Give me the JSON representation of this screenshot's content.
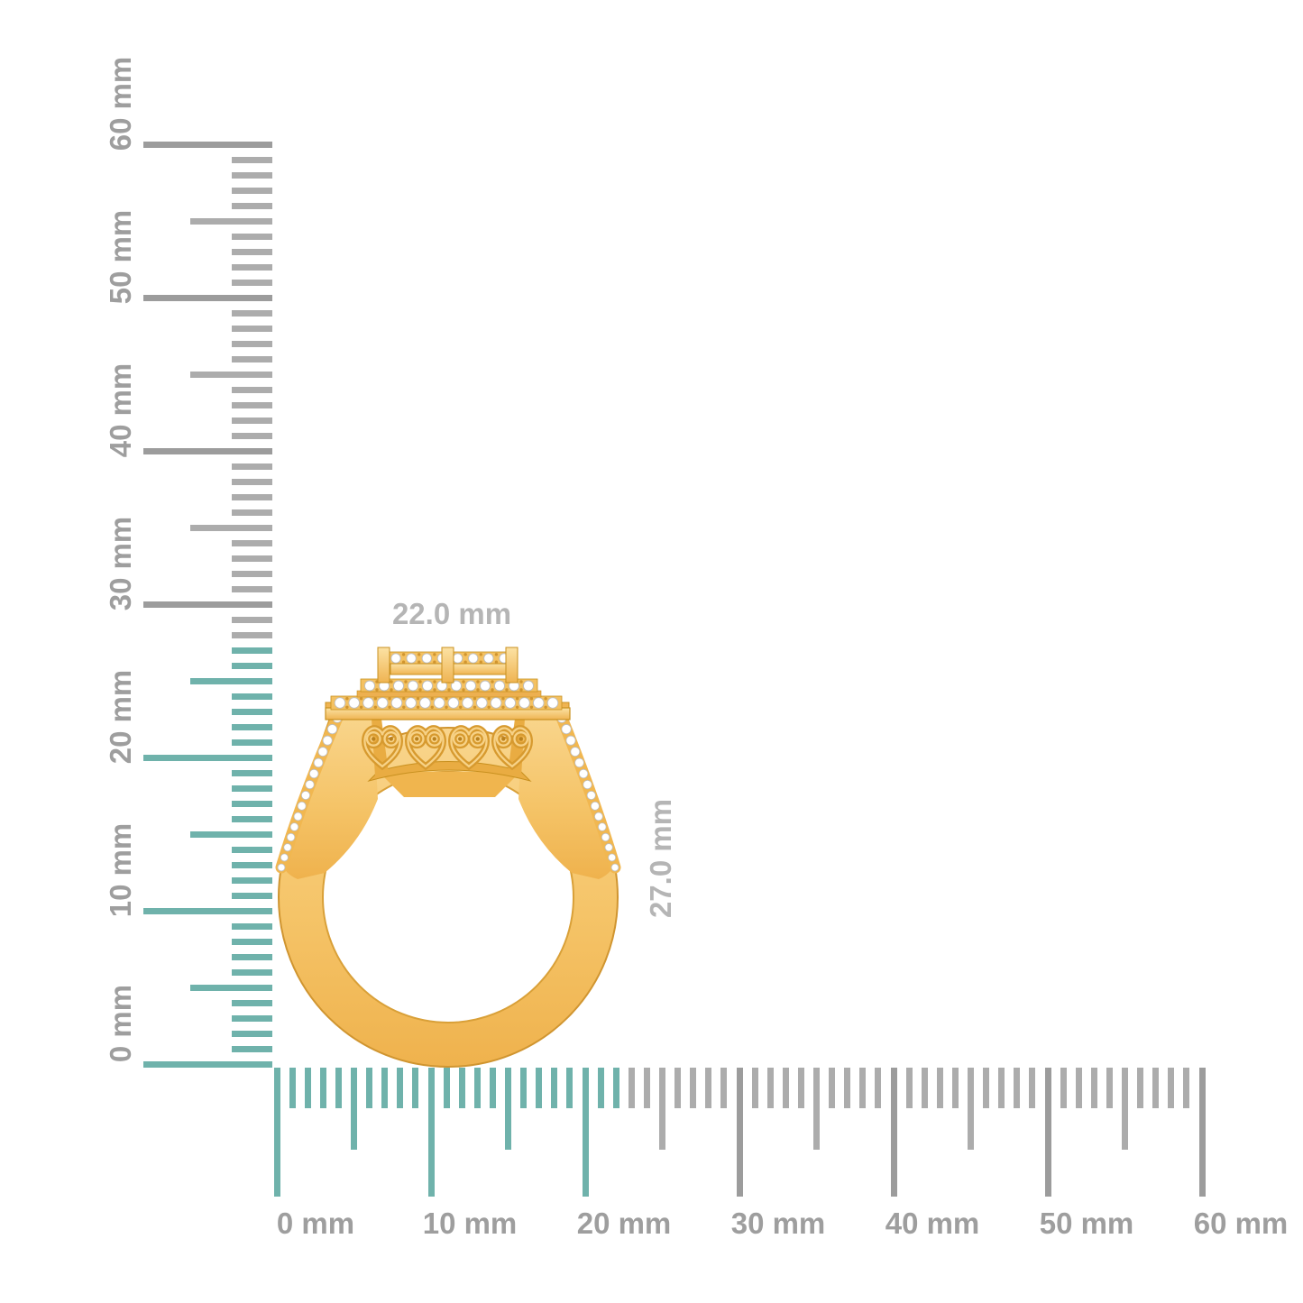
{
  "dimension_labels": {
    "width": "22.0 mm",
    "height": "27.0 mm"
  },
  "rulers": {
    "unit": "mm",
    "vertical": {
      "min_mm": 0,
      "max_mm": 60,
      "major_step_mm": 10,
      "minor_step_mm": 1,
      "tick_labels": [
        "0 mm",
        "10 mm",
        "20 mm",
        "30 mm",
        "40 mm",
        "50 mm",
        "60 mm"
      ],
      "highlight_extent_mm": 27
    },
    "horizontal": {
      "min_mm": 0,
      "max_mm": 60,
      "major_step_mm": 10,
      "minor_step_mm": 1,
      "tick_labels": [
        "0 mm",
        "10 mm",
        "20 mm",
        "30 mm",
        "40 mm",
        "50 mm",
        "60 mm"
      ],
      "highlight_extent_mm": 22
    }
  },
  "object": {
    "type": "gold-diamond-cluster-ring-side-view",
    "width_mm": 22.0,
    "height_mm": 27.0
  },
  "ring": {
    "halo_rows": [
      {
        "stones": 16
      },
      {
        "stones": 12
      },
      {
        "stones": 8
      }
    ],
    "shoulder_stones_per_side": 15,
    "gallery_swirls": 4
  },
  "colors": {
    "background": "#FFFFFF",
    "highlight_tick": "#6FB2AB",
    "tick_minor": "#ACACAC",
    "tick_major": "#9C9C9C",
    "ruler_label": "#9E9E9E",
    "dimension_label": "#B5B5B5",
    "gold": "#F5C468",
    "gold_mid": "#EFB452",
    "gold_dark": "#D79A2F",
    "gold_outline": "#C28A1E",
    "diamond": "#FFFFFF",
    "diamond_edge": "#BDBDBD"
  }
}
